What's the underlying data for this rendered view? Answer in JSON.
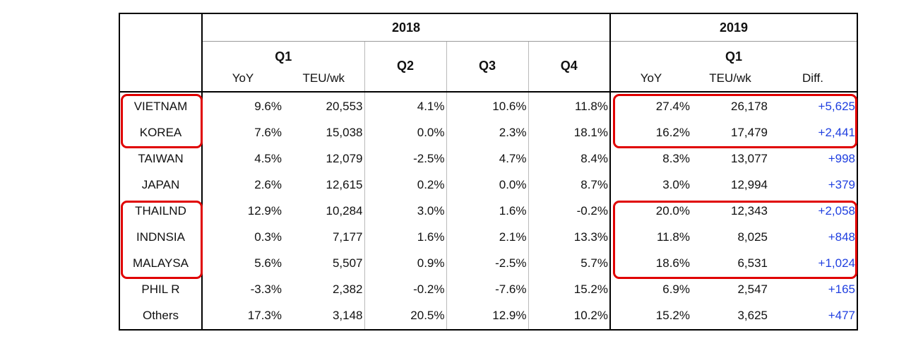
{
  "chart_data": {
    "type": "table",
    "header": {
      "year_2018": "2018",
      "year_2019": "2019",
      "q1_2018": "Q1",
      "q2_2018": "Q2",
      "q3_2018": "Q3",
      "q4_2018": "Q4",
      "q1_2019": "Q1",
      "yoy_2018": "YoY",
      "teu_2018": "TEU/wk",
      "yoy_2019": "YoY",
      "teu_2019": "TEU/wk",
      "diff_2019": "Diff."
    },
    "rows": [
      {
        "country": "VIETNAM",
        "q1_yoy": "9.6%",
        "q1_teu": "20,553",
        "q2": "4.1%",
        "q3": "10.6%",
        "q4": "11.8%",
        "q1_2019_yoy": "27.4%",
        "q1_2019_teu": "26,178",
        "diff": "+5,625"
      },
      {
        "country": "KOREA",
        "q1_yoy": "7.6%",
        "q1_teu": "15,038",
        "q2": "0.0%",
        "q3": "2.3%",
        "q4": "18.1%",
        "q1_2019_yoy": "16.2%",
        "q1_2019_teu": "17,479",
        "diff": "+2,441"
      },
      {
        "country": "TAIWAN",
        "q1_yoy": "4.5%",
        "q1_teu": "12,079",
        "q2": "-2.5%",
        "q3": "4.7%",
        "q4": "8.4%",
        "q1_2019_yoy": "8.3%",
        "q1_2019_teu": "13,077",
        "diff": "+998"
      },
      {
        "country": "JAPAN",
        "q1_yoy": "2.6%",
        "q1_teu": "12,615",
        "q2": "0.2%",
        "q3": "0.0%",
        "q4": "8.7%",
        "q1_2019_yoy": "3.0%",
        "q1_2019_teu": "12,994",
        "diff": "+379"
      },
      {
        "country": "THAILND",
        "q1_yoy": "12.9%",
        "q1_teu": "10,284",
        "q2": "3.0%",
        "q3": "1.6%",
        "q4": "-0.2%",
        "q1_2019_yoy": "20.0%",
        "q1_2019_teu": "12,343",
        "diff": "+2,058"
      },
      {
        "country": "INDNSIA",
        "q1_yoy": "0.3%",
        "q1_teu": "7,177",
        "q2": "1.6%",
        "q3": "2.1%",
        "q4": "13.3%",
        "q1_2019_yoy": "11.8%",
        "q1_2019_teu": "8,025",
        "diff": "+848"
      },
      {
        "country": "MALAYSA",
        "q1_yoy": "5.6%",
        "q1_teu": "5,507",
        "q2": "0.9%",
        "q3": "-2.5%",
        "q4": "5.7%",
        "q1_2019_yoy": "18.6%",
        "q1_2019_teu": "6,531",
        "diff": "+1,024"
      },
      {
        "country": "PHIL R",
        "q1_yoy": "-3.3%",
        "q1_teu": "2,382",
        "q2": "-0.2%",
        "q3": "-7.6%",
        "q4": "15.2%",
        "q1_2019_yoy": "6.9%",
        "q1_2019_teu": "2,547",
        "diff": "+165"
      },
      {
        "country": "Others",
        "q1_yoy": "17.3%",
        "q1_teu": "3,148",
        "q2": "20.5%",
        "q3": "12.9%",
        "q4": "10.2%",
        "q1_2019_yoy": "15.2%",
        "q1_2019_teu": "3,625",
        "diff": "+477"
      }
    ],
    "highlights": {
      "color": "#e00000",
      "groups": [
        {
          "name": "vietnam-korea",
          "countries": [
            "VIETNAM",
            "KOREA"
          ]
        },
        {
          "name": "thailnd-indnsia-malaysa",
          "countries": [
            "THAILND",
            "INDNSIA",
            "MALAYSA"
          ]
        }
      ]
    },
    "diff_color": "#1f3fe0"
  }
}
